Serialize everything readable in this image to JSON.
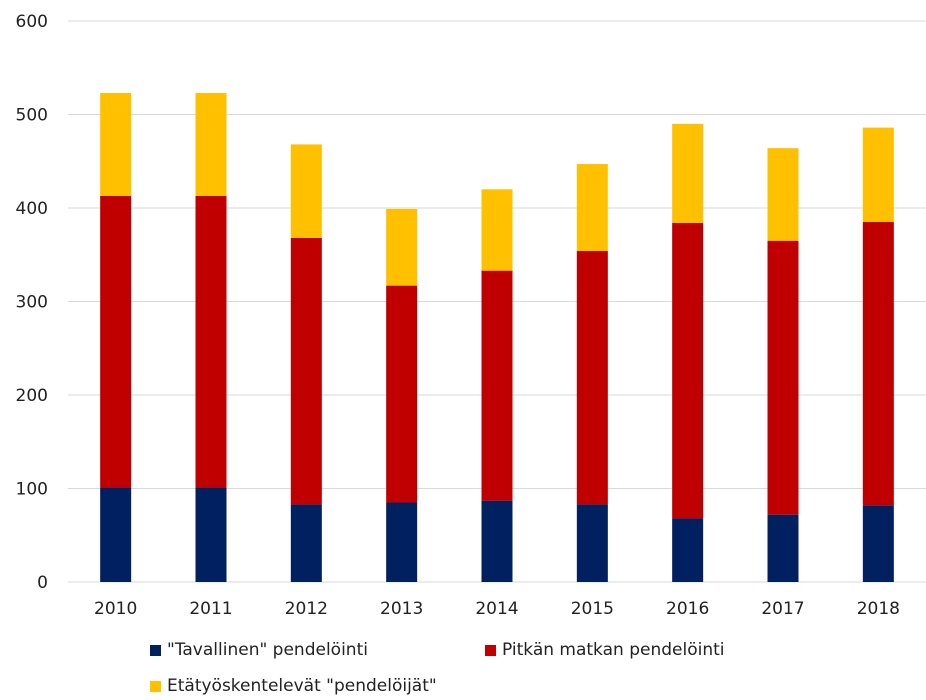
{
  "chart_data": {
    "type": "bar",
    "stacked": true,
    "categories": [
      "2010",
      "2011",
      "2012",
      "2013",
      "2014",
      "2015",
      "2016",
      "2017",
      "2018"
    ],
    "series": [
      {
        "name": "\"Tavallinen\" pendelöinti",
        "color": "#002060",
        "values": [
          101,
          101,
          83,
          85,
          87,
          83,
          68,
          72,
          82
        ]
      },
      {
        "name": "Pitkän matkan pendelöinti",
        "color": "#c00000",
        "values": [
          312,
          312,
          285,
          232,
          246,
          271,
          316,
          293,
          303
        ]
      },
      {
        "name": "Etätyöskentelevät \"pendelöijät\"",
        "color": "#ffc000",
        "values": [
          110,
          110,
          100,
          82,
          87,
          93,
          106,
          99,
          101
        ]
      }
    ],
    "title": "",
    "xlabel": "",
    "ylabel": "",
    "ylim": [
      0,
      600
    ],
    "yticks": [
      "0",
      "100",
      "200",
      "300",
      "400",
      "500",
      "600"
    ],
    "grid": true,
    "legend_position": "bottom"
  }
}
